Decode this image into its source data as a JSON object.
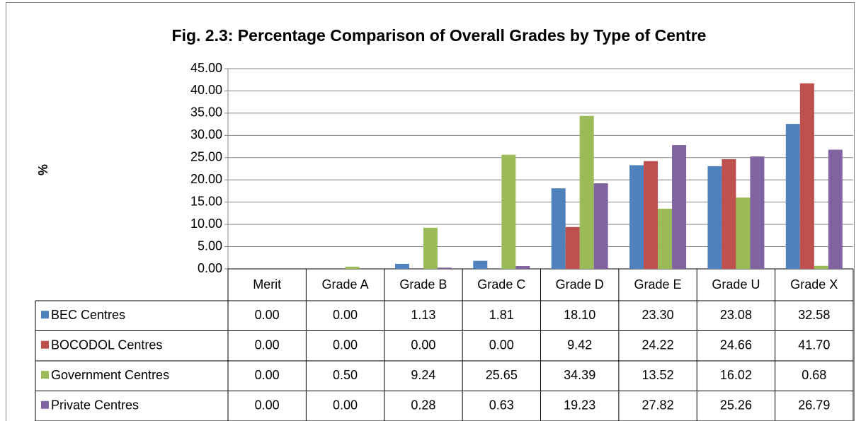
{
  "chart_data": {
    "type": "bar",
    "title": "Fig. 2.3: Percentage Comparison of Overall Grades by Type of Centre",
    "y_label": "%",
    "categories": [
      "Merit",
      "Grade A",
      "Grade B",
      "Grade C",
      "Grade D",
      "Grade E",
      "Grade U",
      "Grade X"
    ],
    "series": [
      {
        "name": "BEC  Centres",
        "color": "#4f81bd",
        "values": [
          0,
          0,
          1.13,
          1.81,
          18.1,
          23.3,
          23.08,
          32.58
        ],
        "value_labels": [
          "0.00",
          "0.00",
          "1.13",
          "1.81",
          "18.10",
          "23.30",
          "23.08",
          "32.58"
        ]
      },
      {
        "name": "BOCODOL Centres",
        "color": "#c0504d",
        "values": [
          0,
          0,
          0,
          0,
          9.42,
          24.22,
          24.66,
          41.7
        ],
        "value_labels": [
          "0.00",
          "0.00",
          "0.00",
          "0.00",
          "9.42",
          "24.22",
          "24.66",
          "41.70"
        ]
      },
      {
        "name": "Government Centres",
        "color": "#9bbb59",
        "values": [
          0,
          0.5,
          9.24,
          25.65,
          34.39,
          13.52,
          16.02,
          0.68
        ],
        "value_labels": [
          "0.00",
          "0.50",
          "9.24",
          "25.65",
          "34.39",
          "13.52",
          "16.02",
          "0.68"
        ]
      },
      {
        "name": "Private Centres",
        "color": "#8064a2",
        "values": [
          0,
          0,
          0.28,
          0.63,
          19.23,
          27.82,
          25.26,
          26.79
        ],
        "value_labels": [
          "0.00",
          "0.00",
          "0.28",
          "0.63",
          "19.23",
          "27.82",
          "25.26",
          "26.79"
        ]
      }
    ],
    "ylim": [
      0,
      45
    ],
    "yticks": [
      {
        "value": 0,
        "label": "0.00"
      },
      {
        "value": 5,
        "label": "5.00"
      },
      {
        "value": 10,
        "label": "10.00"
      },
      {
        "value": 15,
        "label": "15.00"
      },
      {
        "value": 20,
        "label": "20.00"
      },
      {
        "value": 25,
        "label": "25.00"
      },
      {
        "value": 30,
        "label": "30.00"
      },
      {
        "value": 35,
        "label": "35.00"
      },
      {
        "value": 40,
        "label": "40.00"
      },
      {
        "value": 45,
        "label": "45.00"
      }
    ],
    "grid": true
  }
}
